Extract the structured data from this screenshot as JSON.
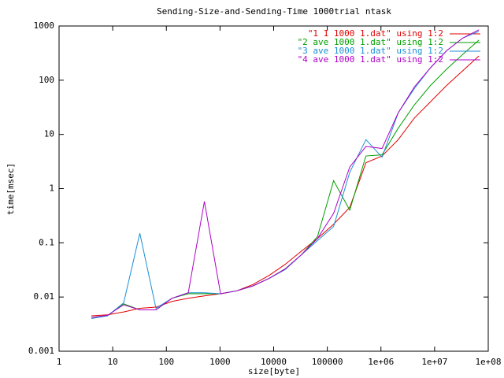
{
  "chart_data": {
    "type": "line",
    "title": "Sending-Size-and-Sending-Time 1000trial ntask",
    "x_label": "size[byte]",
    "y_label": "time[msec]",
    "x_log": true,
    "y_log": true,
    "grid": false,
    "legend": "top-right",
    "x": [
      4,
      8,
      16,
      32,
      64,
      128,
      256,
      512,
      1024,
      2048,
      4096,
      8192,
      16384,
      32768,
      65536,
      131072,
      262144,
      524288,
      1048576,
      2097152,
      4194304,
      8388608,
      16777216,
      33554432,
      67108864
    ],
    "series": [
      {
        "name": "\"1 1 1000 1.dat\" using 1:2",
        "color": "#e00000",
        "values": [
          0.0045,
          0.0047,
          0.0053,
          0.0062,
          0.0065,
          0.0083,
          0.0095,
          0.0105,
          0.0115,
          0.013,
          0.017,
          0.025,
          0.04,
          0.07,
          0.12,
          0.22,
          0.45,
          3.0,
          4.0,
          8,
          20,
          40,
          80,
          150,
          280
        ]
      },
      {
        "name": "\"2 ave 1000 1.dat\" using 1:2",
        "color": "#00a000",
        "values": [
          0.0042,
          0.0045,
          0.0075,
          0.0058,
          0.0058,
          0.0095,
          0.0115,
          0.0115,
          0.0115,
          0.013,
          0.016,
          0.022,
          0.033,
          0.06,
          0.13,
          1.4,
          0.4,
          4.0,
          4.2,
          13,
          35,
          80,
          160,
          300,
          550
        ]
      },
      {
        "name": "\"3 ave 1000 1.dat\" using 1:2",
        "color": "#1a8fd6",
        "values": [
          0.004,
          0.0045,
          0.0078,
          0.15,
          0.0062,
          0.0095,
          0.012,
          0.012,
          0.0115,
          0.013,
          0.016,
          0.022,
          0.032,
          0.06,
          0.11,
          0.2,
          2,
          8,
          3.8,
          25,
          70,
          170,
          350,
          600,
          800
        ]
      },
      {
        "name": "\"4 ave 1000 1.dat\" using 1:2",
        "color": "#b000c8",
        "values": [
          0.0042,
          0.0046,
          0.0072,
          0.0058,
          0.0058,
          0.0095,
          0.012,
          0.58,
          0.0115,
          0.013,
          0.016,
          0.022,
          0.033,
          0.06,
          0.12,
          0.35,
          2.5,
          6,
          5.5,
          25,
          75,
          170,
          350,
          600,
          850
        ]
      }
    ],
    "xlim": [
      1,
      100000000
    ],
    "xticks": [
      1,
      10,
      100,
      1000,
      10000,
      100000,
      {
        "value": 1000000,
        "label": "1e+06"
      },
      {
        "value": 10000000,
        "label": "1e+07"
      },
      {
        "value": 100000000,
        "label": "1e+08"
      }
    ],
    "ylim": [
      0.001,
      1000
    ],
    "yticks": [
      0.001,
      0.01,
      0.1,
      1,
      10,
      100,
      1000
    ]
  }
}
